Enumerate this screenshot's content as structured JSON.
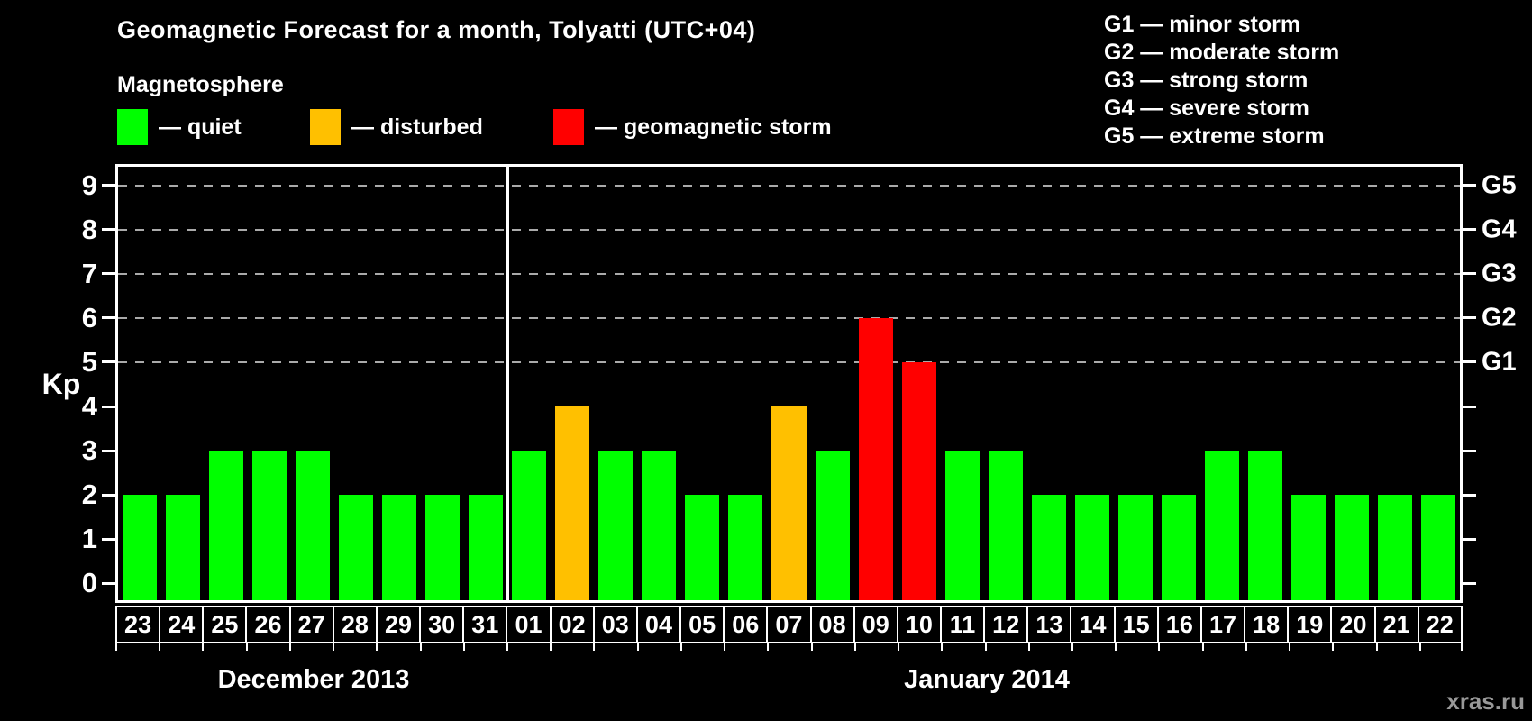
{
  "title": "Geomagnetic Forecast for a month, Tolyatti (UTC+04)",
  "legend": {
    "heading": "Magnetosphere",
    "items": [
      {
        "key": "quiet",
        "label": "— quiet",
        "color": "#00ff00"
      },
      {
        "key": "disturbed",
        "label": "— disturbed",
        "color": "#ffc000"
      },
      {
        "key": "storm",
        "label": "— geomagnetic storm",
        "color": "#ff0000"
      }
    ]
  },
  "storm_scale_legend": [
    "G1 — minor storm",
    "G2 — moderate storm",
    "G3 — strong storm",
    "G4 — severe storm",
    "G5 — extreme storm"
  ],
  "watermark": "xras.ru",
  "chart_data": {
    "type": "bar",
    "title": "Geomagnetic Forecast for a month, Tolyatti (UTC+04)",
    "ylabel": "Kp",
    "xlabel": "",
    "ylim": [
      0,
      9
    ],
    "yticks": [
      0,
      1,
      2,
      3,
      4,
      5,
      6,
      7,
      8,
      9
    ],
    "gridlines_at": [
      5,
      6,
      7,
      8,
      9
    ],
    "grid": "dashed horizontal at storm levels only",
    "right_axis_labels": [
      {
        "kp": 5,
        "label": "G1"
      },
      {
        "kp": 6,
        "label": "G2"
      },
      {
        "kp": 7,
        "label": "G3"
      },
      {
        "kp": 8,
        "label": "G4"
      },
      {
        "kp": 9,
        "label": "G5"
      }
    ],
    "months": [
      {
        "label": "December 2013",
        "days": 9
      },
      {
        "label": "January 2014",
        "days": 22
      }
    ],
    "categories": [
      "23",
      "24",
      "25",
      "26",
      "27",
      "28",
      "29",
      "30",
      "31",
      "01",
      "02",
      "03",
      "04",
      "05",
      "06",
      "07",
      "08",
      "09",
      "10",
      "11",
      "12",
      "13",
      "14",
      "15",
      "16",
      "17",
      "18",
      "19",
      "20",
      "21",
      "22"
    ],
    "values": [
      2,
      2,
      3,
      3,
      3,
      2,
      2,
      2,
      2,
      3,
      4,
      3,
      3,
      2,
      2,
      4,
      3,
      6,
      5,
      3,
      3,
      2,
      2,
      2,
      2,
      3,
      3,
      2,
      2,
      2,
      2
    ],
    "statuses": [
      "quiet",
      "quiet",
      "quiet",
      "quiet",
      "quiet",
      "quiet",
      "quiet",
      "quiet",
      "quiet",
      "quiet",
      "disturbed",
      "quiet",
      "quiet",
      "quiet",
      "quiet",
      "disturbed",
      "quiet",
      "storm",
      "storm",
      "quiet",
      "quiet",
      "quiet",
      "quiet",
      "quiet",
      "quiet",
      "quiet",
      "quiet",
      "quiet",
      "quiet",
      "quiet",
      "quiet"
    ],
    "colors": {
      "quiet": "#00ff00",
      "disturbed": "#ffc000",
      "storm": "#ff0000"
    }
  }
}
